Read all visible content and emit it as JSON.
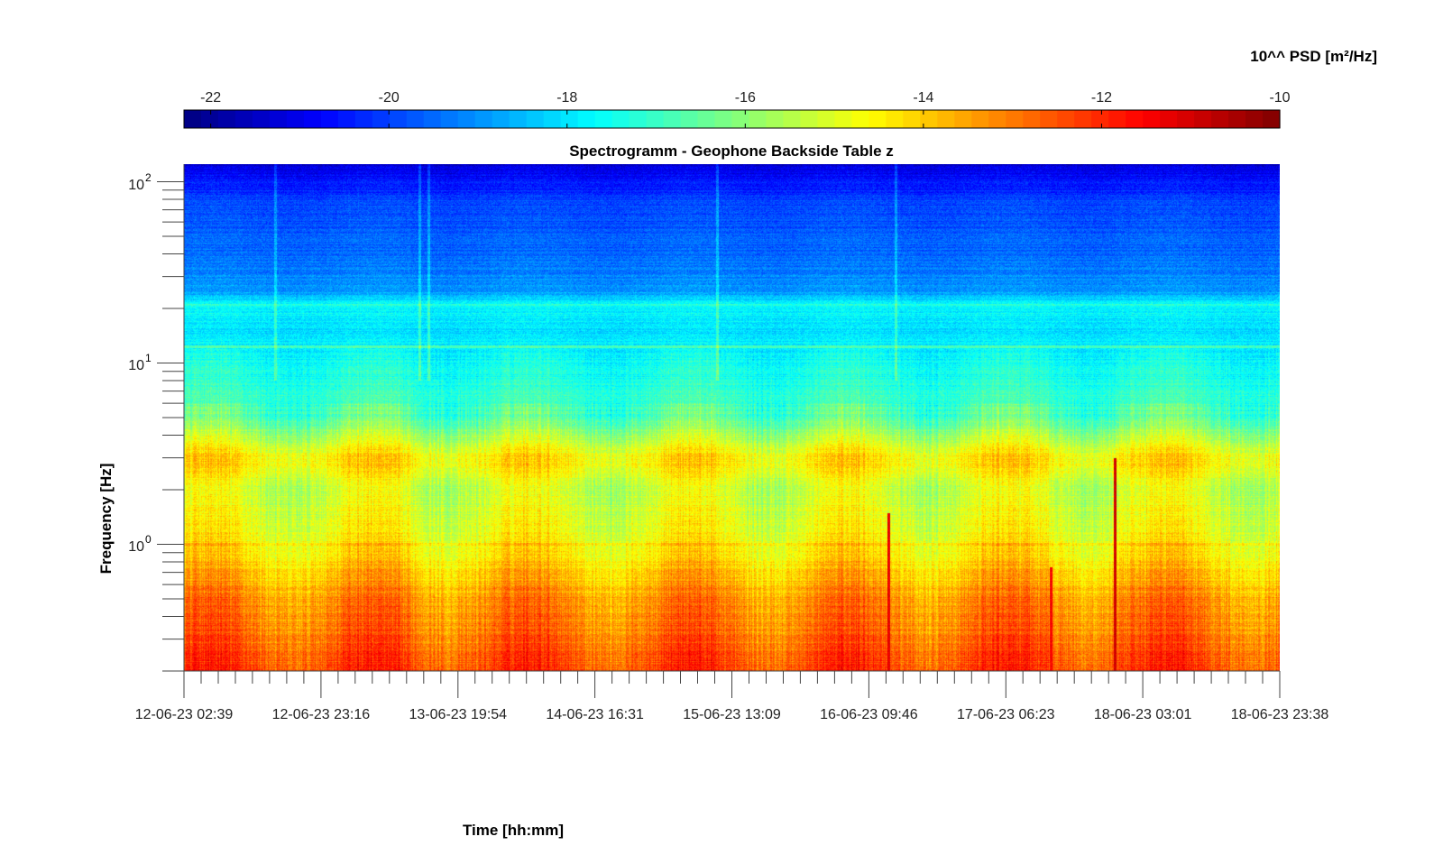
{
  "colorbar": {
    "label": "10^^ PSD [m²/Hz]",
    "range": [
      -22.3,
      -10
    ],
    "ticks": [
      "-22",
      "-20",
      "-18",
      "-16",
      "-14",
      "-12",
      "-10"
    ],
    "tick_values": [
      -22,
      -20,
      -18,
      -16,
      -14,
      -12,
      -10
    ],
    "colormap": "jet"
  },
  "chart_data": {
    "type": "heatmap",
    "title": "Spectrogramm - Geophone Backside Table z",
    "xlabel": "Time [hh:mm]",
    "ylabel": "Frequency [Hz]",
    "y_scale": "log",
    "ylim": [
      0.2,
      125
    ],
    "xlim": [
      "12-06-23 02:39",
      "18-06-23 23:38"
    ],
    "x_tick_labels": [
      "12-06-23 02:39",
      "12-06-23 23:16",
      "13-06-23 19:54",
      "14-06-23 16:31",
      "15-06-23 13:09",
      "16-06-23 09:46",
      "17-06-23 06:23",
      "18-06-23 03:01",
      "18-06-23 23:38"
    ],
    "y_ticks": [
      {
        "base": "10",
        "exp": "2",
        "value": 100
      },
      {
        "base": "10",
        "exp": "1",
        "value": 10
      },
      {
        "base": "10",
        "exp": "0",
        "value": 1
      }
    ],
    "color_range": [
      -22.3,
      -10
    ],
    "color_units": "log10 PSD [m²/Hz]",
    "psd_profile": [
      {
        "freq": 125,
        "psd": -21.2
      },
      {
        "freq": 80,
        "psd": -20.0
      },
      {
        "freq": 40,
        "psd": -19.5
      },
      {
        "freq": 25,
        "psd": -19.0
      },
      {
        "freq": 21,
        "psd": -17.6
      },
      {
        "freq": 15,
        "psd": -18.0
      },
      {
        "freq": 8,
        "psd": -17.3
      },
      {
        "freq": 5,
        "psd": -16.6
      },
      {
        "freq": 3,
        "psd": -14.3
      },
      {
        "freq": 2,
        "psd": -15.2
      },
      {
        "freq": 1,
        "psd": -14.6
      },
      {
        "freq": 0.7,
        "psd": -13.9
      },
      {
        "freq": 0.5,
        "psd": -13.2
      },
      {
        "freq": 0.3,
        "psd": -12.8
      },
      {
        "freq": 0.2,
        "psd": -12.3
      }
    ],
    "narrowband_lines": [
      {
        "freq": 21,
        "psd": -17.2
      },
      {
        "freq": 1.0,
        "psd": -14.0
      },
      {
        "freq": 12.3,
        "psd": -16.8
      }
    ],
    "transients": [
      {
        "time": "16-06-23 12:40",
        "fmax": 1.5,
        "psd": -11.3
      },
      {
        "time": "17-06-23 13:10",
        "fmax": 0.75,
        "psd": -11.5
      },
      {
        "time": "17-06-23 22:50",
        "fmax": 3.0,
        "psd": -11.0
      }
    ]
  }
}
